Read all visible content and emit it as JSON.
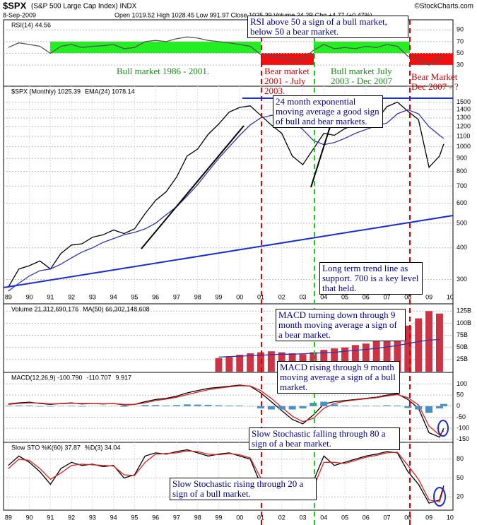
{
  "header": {
    "title": "$SPX",
    "subtitle": "(S&P 500 Large Cap Index) INDX",
    "source": "©StockCharts.com",
    "date": "8-Sep-2009",
    "quote": "Open 1019.52  High 1028.45  Low 991.97  Close 1025.39  Volume 24.2B  Chg +4.77 (+0.47%)"
  },
  "annotations": [
    "RSI above 50 a sign of a bull market, below 50 a bear market.",
    "Bull market 1986 - 2001.",
    "Bear market 2001 - July 2003.",
    "Bull market July 2003 - Dec 2007",
    "Bear Market Dec 2007 - ?",
    "24 month exponential moving average a good sign of bull and bear markets.",
    "Long term trend line as support. 700 is a key level that held.",
    "MACD turning down through 9 month moving average a sign of a bear market.",
    "MACD rising through 9 month moving average a sign of a bull market.",
    "Slow Stochastic falling through 80 a sign of a bear market.",
    "Slow Stochastic rising through 20 a sign of a bull market."
  ],
  "chart_data": [
    {
      "type": "line",
      "x": [
        1989,
        1989.5,
        1990,
        1990.5,
        1991,
        1991.5,
        1992,
        1992.5,
        1993,
        1993.5,
        1994,
        1994.5,
        1995,
        1995.5,
        1996,
        1996.5,
        1997,
        1997.5,
        1998,
        1998.5,
        1999,
        1999.5,
        2000,
        2000.5,
        2001,
        2001.5,
        2002,
        2002.5,
        2003,
        2003.5,
        2004,
        2004.5,
        2005,
        2005.5,
        2006,
        2006.5,
        2007,
        2007.5,
        2008,
        2008.5,
        2009,
        2009.5,
        2009.7
      ],
      "xlim": [
        1988.77,
        2010.14
      ],
      "ylim": [
        0,
        100
      ],
      "yticks": [
        30,
        50,
        70,
        90
      ],
      "grid": true,
      "series": [
        {
          "name": "RSI(14) 44.56",
          "color": "#555555",
          "values": [
            60,
            68,
            65,
            62,
            50,
            62,
            65,
            60,
            62,
            63,
            65,
            58,
            60,
            70,
            72,
            70,
            75,
            78,
            76,
            72,
            70,
            68,
            65,
            62,
            48,
            45,
            44,
            38,
            40,
            55,
            65,
            58,
            60,
            58,
            62,
            60,
            65,
            62,
            45,
            40,
            30,
            42,
            44.56
          ]
        }
      ]
    },
    {
      "type": "line",
      "log": true,
      "x": [
        1989,
        1989.5,
        1990,
        1990.5,
        1991,
        1991.5,
        1992,
        1992.5,
        1993,
        1993.5,
        1994,
        1994.5,
        1995,
        1995.5,
        1996,
        1996.5,
        1997,
        1997.5,
        1998,
        1998.5,
        1999,
        1999.5,
        2000,
        2000.5,
        2001,
        2001.5,
        2002,
        2002.5,
        2003,
        2003.5,
        2004,
        2004.5,
        2005,
        2005.5,
        2006,
        2006.5,
        2007,
        2007.5,
        2008,
        2008.5,
        2009,
        2009.5,
        2009.7
      ],
      "xlim": [
        1988.77,
        2010.14
      ],
      "ylim": [
        270,
        1700
      ],
      "yticks": [
        300,
        400,
        500,
        600,
        700,
        800,
        900,
        1000,
        1100,
        1200,
        1300,
        1400,
        1500
      ],
      "grid": true,
      "xticks": [
        {
          "value": 1989,
          "label": "89"
        },
        {
          "value": 1990,
          "label": "90"
        },
        {
          "value": 1991,
          "label": "91"
        },
        {
          "value": 1992,
          "label": "92"
        },
        {
          "value": 1993,
          "label": "93"
        },
        {
          "value": 1994,
          "label": "94"
        },
        {
          "value": 1995,
          "label": "95"
        },
        {
          "value": 1996,
          "label": "96"
        },
        {
          "value": 1997,
          "label": "97"
        },
        {
          "value": 1998,
          "label": "98"
        },
        {
          "value": 1999,
          "label": "99"
        },
        {
          "value": 2000,
          "label": "00"
        },
        {
          "value": 2001,
          "label": "01"
        },
        {
          "value": 2002,
          "label": "02"
        },
        {
          "value": 2003,
          "label": "03"
        },
        {
          "value": 2004,
          "label": "04"
        },
        {
          "value": 2005,
          "label": "05"
        },
        {
          "value": 2006,
          "label": "06"
        },
        {
          "value": 2007,
          "label": "07"
        },
        {
          "value": 2008,
          "label": "08"
        },
        {
          "value": 2009,
          "label": "09"
        },
        {
          "value": 2010,
          "label": "10"
        }
      ],
      "series": [
        {
          "name": "$SPX (Monthly) 1025.39",
          "color": "#000000",
          "values": [
            280,
            330,
            340,
            355,
            330,
            380,
            410,
            415,
            440,
            450,
            470,
            455,
            475,
            545,
            615,
            665,
            760,
            920,
            980,
            1120,
            1230,
            1370,
            1430,
            1450,
            1330,
            1220,
            1130,
            920,
            850,
            980,
            1130,
            1110,
            1180,
            1230,
            1280,
            1270,
            1440,
            1500,
            1380,
            1280,
            830,
            920,
            1025.39
          ]
        },
        {
          "name": "EMA(24) 1078.14",
          "color": "#3333aa",
          "values": [
            270,
            290,
            310,
            325,
            330,
            345,
            365,
            385,
            400,
            420,
            435,
            450,
            460,
            475,
            500,
            540,
            580,
            640,
            710,
            800,
            900,
            1000,
            1110,
            1220,
            1300,
            1330,
            1330,
            1270,
            1170,
            1060,
            1020,
            1040,
            1080,
            1130,
            1170,
            1210,
            1240,
            1350,
            1400,
            1350,
            1200,
            1110,
            1078.14
          ]
        }
      ]
    },
    {
      "type": "bar",
      "x": [
        1999,
        1999.5,
        2000,
        2000.5,
        2001,
        2001.5,
        2002,
        2002.5,
        2003,
        2003.5,
        2004,
        2004.5,
        2005,
        2005.5,
        2006,
        2006.5,
        2007,
        2007.5,
        2008,
        2008.5,
        2009,
        2009.5
      ],
      "xlim": [
        1988.77,
        2010.14
      ],
      "ylim": [
        0,
        140
      ],
      "yticks": [
        {
          "value": 25,
          "label": "25B"
        },
        {
          "value": 50,
          "label": "50B"
        },
        {
          "value": 75,
          "label": "75B"
        },
        {
          "value": 100,
          "label": "100B"
        },
        {
          "value": 125,
          "label": "125B"
        }
      ],
      "grid": true,
      "series": [
        {
          "name": "Volume 21,312,690,176",
          "color": "#cc3344",
          "values": [
            28,
            30,
            35,
            38,
            40,
            42,
            40,
            38,
            36,
            40,
            45,
            48,
            50,
            55,
            58,
            65,
            70,
            80,
            95,
            110,
            125,
            120
          ]
        },
        {
          "name": "MA(50) 66,302,148,608",
          "color": "#3333aa",
          "type": "line",
          "values": [
            30,
            31,
            32,
            33,
            34,
            35,
            36,
            36,
            37,
            38,
            39,
            40,
            42,
            44,
            46,
            48,
            51,
            54,
            58,
            62,
            65,
            66.3
          ]
        }
      ]
    },
    {
      "type": "line",
      "x": [
        1989,
        1989.5,
        1990,
        1990.5,
        1991,
        1991.5,
        1992,
        1992.5,
        1993,
        1993.5,
        1994,
        1994.5,
        1995,
        1995.5,
        1996,
        1996.5,
        1997,
        1997.5,
        1998,
        1998.5,
        1999,
        1999.5,
        2000,
        2000.5,
        2001,
        2001.5,
        2002,
        2002.5,
        2003,
        2003.5,
        2004,
        2004.5,
        2005,
        2005.5,
        2006,
        2006.5,
        2007,
        2007.5,
        2008,
        2008.5,
        2009,
        2009.5,
        2009.7
      ],
      "xlim": [
        1988.77,
        2010.14
      ],
      "ylim": [
        -160,
        130
      ],
      "yticks": [
        -150,
        -100,
        -50,
        0,
        50,
        100
      ],
      "grid": true,
      "series": [
        {
          "name": "MACD(12,26,9) -100.790",
          "color": "#000000",
          "values": [
            10,
            15,
            18,
            12,
            8,
            12,
            15,
            10,
            12,
            10,
            12,
            5,
            8,
            20,
            30,
            35,
            45,
            60,
            70,
            80,
            85,
            90,
            95,
            90,
            60,
            20,
            -20,
            -60,
            -80,
            -40,
            10,
            20,
            25,
            30,
            35,
            40,
            50,
            55,
            30,
            -10,
            -120,
            -140,
            -100.79
          ]
        },
        {
          "name": "-110.707",
          "color": "#dd2222",
          "values": [
            8,
            12,
            15,
            14,
            10,
            11,
            13,
            12,
            12,
            11,
            11,
            8,
            8,
            15,
            25,
            32,
            40,
            52,
            63,
            74,
            81,
            87,
            92,
            91,
            70,
            35,
            -5,
            -45,
            -70,
            -55,
            -10,
            12,
            22,
            28,
            33,
            38,
            46,
            52,
            38,
            5,
            -90,
            -130,
            -110.707
          ]
        },
        {
          "name": "9.917",
          "color": "#4a8fc4",
          "type": "bar",
          "values": [
            2,
            3,
            3,
            -2,
            -2,
            1,
            2,
            -2,
            0,
            -1,
            1,
            -3,
            0,
            5,
            5,
            3,
            5,
            8,
            7,
            6,
            4,
            3,
            3,
            -1,
            -10,
            -15,
            -15,
            -15,
            -10,
            15,
            20,
            8,
            3,
            2,
            2,
            2,
            4,
            3,
            -8,
            -15,
            -30,
            -10,
            9.917
          ]
        }
      ]
    },
    {
      "type": "line",
      "x": [
        1989,
        1989.5,
        1990,
        1990.5,
        1991,
        1991.5,
        1992,
        1992.5,
        1993,
        1993.5,
        1994,
        1994.5,
        1995,
        1995.5,
        1996,
        1996.5,
        1997,
        1997.5,
        1998,
        1998.5,
        1999,
        1999.5,
        2000,
        2000.5,
        2001,
        2001.5,
        2002,
        2002.5,
        2003,
        2003.5,
        2004,
        2004.5,
        2005,
        2005.5,
        2006,
        2006.5,
        2007,
        2007.5,
        2008,
        2008.5,
        2009,
        2009.5,
        2009.7
      ],
      "xlim": [
        1988.77,
        2010.14
      ],
      "ylim": [
        0,
        100
      ],
      "yticks": [
        20,
        50,
        80
      ],
      "grid": true,
      "xticks": [
        {
          "value": 1989,
          "label": "89"
        },
        {
          "value": 1990,
          "label": "90"
        },
        {
          "value": 1991,
          "label": "91"
        },
        {
          "value": 1992,
          "label": "92"
        },
        {
          "value": 1993,
          "label": "93"
        },
        {
          "value": 1994,
          "label": "94"
        },
        {
          "value": 1995,
          "label": "95"
        },
        {
          "value": 1996,
          "label": "96"
        },
        {
          "value": 1997,
          "label": "97"
        },
        {
          "value": 1998,
          "label": "98"
        },
        {
          "value": 1999,
          "label": "99"
        },
        {
          "value": 2000,
          "label": "00"
        },
        {
          "value": 2001,
          "label": "01"
        },
        {
          "value": 2002,
          "label": "02"
        },
        {
          "value": 2003,
          "label": "03"
        },
        {
          "value": 2004,
          "label": "04"
        },
        {
          "value": 2005,
          "label": "05"
        },
        {
          "value": 2006,
          "label": "06"
        },
        {
          "value": 2007,
          "label": "07"
        },
        {
          "value": 2008,
          "label": "08"
        },
        {
          "value": 2009,
          "label": "09"
        },
        {
          "value": 2010,
          "label": "10"
        }
      ],
      "series": [
        {
          "name": "Slow STO %K(60) 37.87",
          "color": "#000000",
          "values": [
            70,
            85,
            75,
            60,
            40,
            65,
            75,
            70,
            72,
            68,
            70,
            50,
            55,
            85,
            90,
            88,
            92,
            95,
            90,
            85,
            88,
            90,
            85,
            80,
            40,
            30,
            25,
            15,
            20,
            45,
            85,
            70,
            75,
            80,
            85,
            88,
            92,
            90,
            60,
            40,
            10,
            15,
            37.87
          ]
        },
        {
          "name": "%D(3) 34.04",
          "color": "#dd2222",
          "values": [
            65,
            80,
            78,
            65,
            48,
            58,
            70,
            72,
            71,
            70,
            69,
            55,
            54,
            75,
            88,
            89,
            90,
            93,
            92,
            88,
            87,
            89,
            87,
            82,
            50,
            35,
            28,
            20,
            18,
            35,
            75,
            75,
            73,
            78,
            83,
            86,
            90,
            91,
            70,
            48,
            15,
            12,
            34.04
          ]
        }
      ]
    }
  ]
}
